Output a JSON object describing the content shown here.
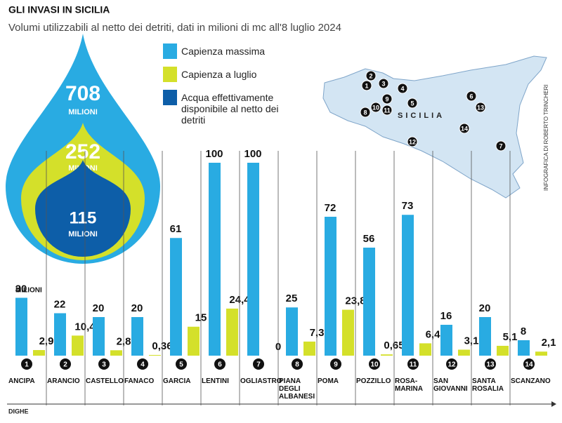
{
  "chart_data": {
    "type": "bar",
    "title": "GLI INVASI  IN SICILIA",
    "subtitle": "Volumi utilizzabili al netto dei detriti, dati in milioni di mc all'8 luglio 2024",
    "x_label": "DIGHE",
    "value_unit": "MILIONI",
    "credit": "INFOGRAFICA DI ROBERTO TRINCHERI",
    "map_label": "SICILIA",
    "categories": [
      "ANCIPA",
      "ARANCIO",
      "CASTELLO",
      "FANACO",
      "GARCIA",
      "LENTINI",
      "OGLIASTRO",
      "PIANA DEGLI ALBANESI",
      "POMA",
      "POZZILLO",
      "ROSA-MARINA",
      "SAN GIOVANNI",
      "SANTA ROSALIA",
      "SCANZANO"
    ],
    "category_numbers": [
      1,
      2,
      3,
      4,
      5,
      6,
      7,
      8,
      9,
      10,
      11,
      12,
      13,
      14
    ],
    "ylim": [
      0,
      100
    ],
    "series": [
      {
        "name": "Capienza massima",
        "color": "#29abe2",
        "values": [
          30,
          22,
          20,
          20,
          61,
          100,
          100,
          25,
          72,
          56,
          73,
          16,
          20,
          8
        ]
      },
      {
        "name": "Capienza a luglio",
        "color": "#d4e02a",
        "values": [
          2.9,
          10.4,
          2.8,
          0.36,
          15,
          24.4,
          0,
          7.3,
          23.8,
          0.65,
          6.4,
          3.1,
          5.1,
          2.1
        ],
        "value_labels": [
          "2,9",
          "10,4",
          "2,8",
          "0,36",
          "15",
          "24,4",
          "0",
          "7,3",
          "23,8",
          "0,65",
          "6,4",
          "3,1",
          "5,1",
          "2,1"
        ]
      }
    ],
    "drop": [
      {
        "value": 708,
        "color": "#29abe2"
      },
      {
        "value": 252,
        "color": "#d4e02a"
      },
      {
        "value": 115,
        "color": "#0d5ea8",
        "name": "Acqua effettivamente disponibile al netto dei detriti"
      }
    ]
  }
}
